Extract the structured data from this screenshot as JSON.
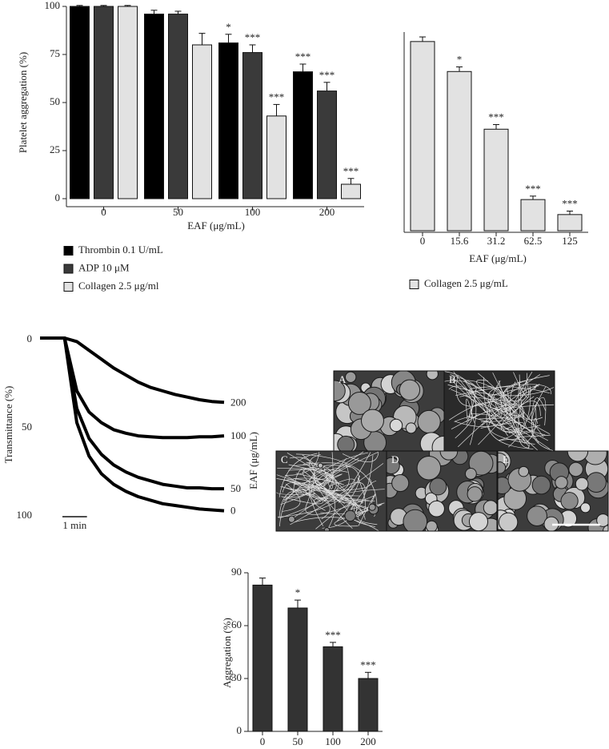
{
  "chart_data": [
    {
      "type": "bar",
      "ylabel": "Platelet aggregation (%)",
      "xlabel": "EAF (μg/mL)",
      "categories": [
        "0",
        "50",
        "100",
        "200"
      ],
      "series": [
        {
          "name": "Thrombin 0.1 U/mL",
          "color": "#000000",
          "values": [
            100,
            96,
            81,
            66
          ],
          "errors": [
            0.5,
            2,
            4.5,
            4
          ],
          "annotations": [
            null,
            null,
            "*",
            "***"
          ]
        },
        {
          "name": "ADP 10 μM",
          "color": "#3a3a3a",
          "values": [
            100,
            96,
            76,
            56
          ],
          "errors": [
            0.5,
            1.5,
            4,
            4.5
          ],
          "annotations": [
            null,
            null,
            "***",
            "***"
          ]
        },
        {
          "name": "Collagen 2.5 μg/ml",
          "color": "#e2e2e2",
          "values": [
            100,
            80,
            43,
            7.5
          ],
          "errors": [
            0.5,
            6,
            6,
            3
          ],
          "annotations": [
            null,
            null,
            "***",
            "***"
          ]
        }
      ],
      "ylim": [
        0,
        100
      ],
      "yticks": [
        0,
        25,
        50,
        75,
        100
      ]
    },
    {
      "type": "bar",
      "xlabel": "EAF (μg/mL)",
      "categories": [
        "0",
        "15.6",
        "31.2",
        "62.5",
        "125"
      ],
      "series": [
        {
          "name": "Collagen 2.5 μg/mL",
          "color": "#e2e2e2",
          "values": [
            82,
            69,
            44,
            13.5,
            7
          ],
          "errors": [
            2,
            2,
            2,
            1.5,
            1.5
          ],
          "annotations": [
            null,
            "*",
            "***",
            "***",
            "***"
          ]
        }
      ],
      "ylim": [
        0,
        100
      ]
    },
    {
      "type": "line",
      "ylabel": "Transmittance (%)",
      "legend_title": "EAF (μg/mL)",
      "x": [
        0,
        0.5,
        1,
        1.5,
        2,
        2.5,
        3,
        3.5,
        4,
        4.5,
        5,
        5.5,
        6,
        6.5,
        7,
        7.5
      ],
      "series": [
        {
          "name": "200",
          "color": "#000000",
          "values": [
            0,
            0,
            0,
            2,
            7,
            12,
            17,
            21,
            25,
            28,
            30,
            32,
            33.5,
            35,
            36,
            36.5
          ]
        },
        {
          "name": "100",
          "color": "#000000",
          "values": [
            0,
            0,
            0,
            30,
            42,
            48,
            52,
            54,
            55.5,
            56,
            56.5,
            56.5,
            56.5,
            56,
            56,
            55.5
          ]
        },
        {
          "name": "50",
          "color": "#000000",
          "values": [
            0,
            0,
            0,
            40,
            57,
            66,
            72,
            76,
            79,
            81,
            83,
            84,
            85,
            85,
            85.5,
            85.5
          ]
        },
        {
          "name": "0",
          "color": "#000000",
          "values": [
            0,
            0,
            0,
            48,
            67,
            77,
            83,
            87,
            90,
            92,
            94,
            95,
            96,
            97,
            97.5,
            98
          ]
        }
      ],
      "xlim": [
        0,
        7.5
      ],
      "ylim": [
        0,
        100
      ],
      "y_inverted": true,
      "yticks": [
        0,
        50,
        100
      ],
      "scale_bar": {
        "value": 1,
        "label": "1 min"
      }
    },
    {
      "type": "bar",
      "ylabel": "Aggregation (%)",
      "categories": [
        "0",
        "50",
        "100",
        "200"
      ],
      "series": [
        {
          "color": "#333333",
          "values": [
            83,
            70,
            48,
            30
          ],
          "errors": [
            4,
            4.5,
            2.5,
            3.5
          ],
          "annotations": [
            null,
            "*",
            "***",
            "***"
          ]
        }
      ],
      "ylim": [
        0,
        90
      ],
      "yticks": [
        0,
        30,
        60,
        90
      ]
    }
  ],
  "images": {
    "labels": [
      "A",
      "B",
      "C",
      "D",
      "E"
    ]
  }
}
